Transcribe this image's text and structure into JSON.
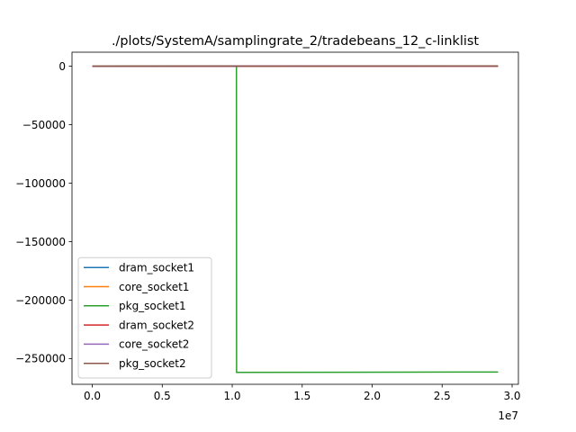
{
  "chart_data": {
    "type": "line",
    "title": "./plots/SystemA/samplingrate_2/tradebeans_12_c-linklist",
    "xlabel": "",
    "ylabel": "",
    "x_offset_label": "1e7",
    "xlim": [
      -1.45,
      30.45
    ],
    "ylim": [
      -272000,
      12000
    ],
    "x_ticks": [
      0,
      5,
      10,
      15,
      20,
      25,
      30
    ],
    "x_tick_labels": [
      "0.0",
      "0.5",
      "1.0",
      "1.5",
      "2.0",
      "2.5",
      "3.0"
    ],
    "y_ticks": [
      0,
      -50000,
      -100000,
      -150000,
      -200000,
      -250000
    ],
    "y_tick_labels": [
      "0",
      "−50000",
      "−100000",
      "−150000",
      "−200000",
      "−250000"
    ],
    "grid": false,
    "legend_position": "lower-left",
    "series": [
      {
        "name": "dram_socket1",
        "color": "#1f77b4",
        "x": [
          0,
          29
        ],
        "y": [
          0,
          100
        ]
      },
      {
        "name": "core_socket1",
        "color": "#ff7f0e",
        "x": [
          0,
          29
        ],
        "y": [
          0,
          200
        ]
      },
      {
        "name": "pkg_socket1",
        "color": "#2ca02c",
        "x": [
          0,
          10.3,
          10.31,
          29
        ],
        "y": [
          0,
          300,
          -261800,
          -261500
        ]
      },
      {
        "name": "dram_socket2",
        "color": "#d62728",
        "x": [
          0,
          29
        ],
        "y": [
          0,
          100
        ]
      },
      {
        "name": "core_socket2",
        "color": "#9467bd",
        "x": [
          0,
          29
        ],
        "y": [
          0,
          200
        ]
      },
      {
        "name": "pkg_socket2",
        "color": "#8c564b",
        "x": [
          0,
          29
        ],
        "y": [
          0,
          300
        ]
      }
    ]
  }
}
